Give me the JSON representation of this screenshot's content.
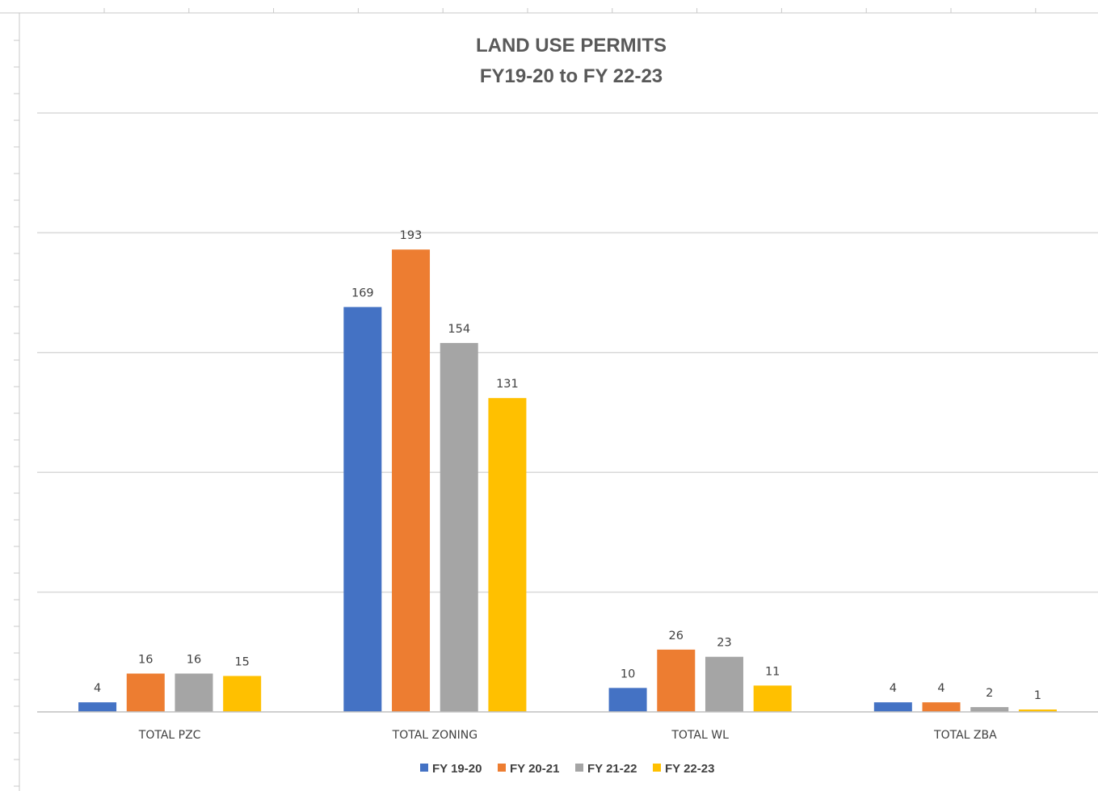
{
  "chart_data": {
    "type": "bar",
    "title": "LAND USE PERMITS",
    "subtitle": "FY19-20 to FY 22-23",
    "xlabel": "",
    "ylabel": "",
    "ylim": [
      0,
      250
    ],
    "grid": true,
    "legend_position": "bottom",
    "data_labels": true,
    "categories": [
      "TOTAL PZC",
      "TOTAL ZONING",
      "TOTAL WL",
      "TOTAL ZBA"
    ],
    "series": [
      {
        "name": "FY 19-20",
        "color": "#4472C4",
        "values": [
          4,
          169,
          10,
          4
        ]
      },
      {
        "name": "FY 20-21",
        "color": "#ED7D31",
        "values": [
          16,
          193,
          26,
          4
        ]
      },
      {
        "name": "FY 21-22",
        "color": "#A5A5A5",
        "values": [
          16,
          154,
          23,
          2
        ]
      },
      {
        "name": "FY 22-23",
        "color": "#FFC000",
        "values": [
          15,
          131,
          11,
          1
        ]
      }
    ]
  }
}
